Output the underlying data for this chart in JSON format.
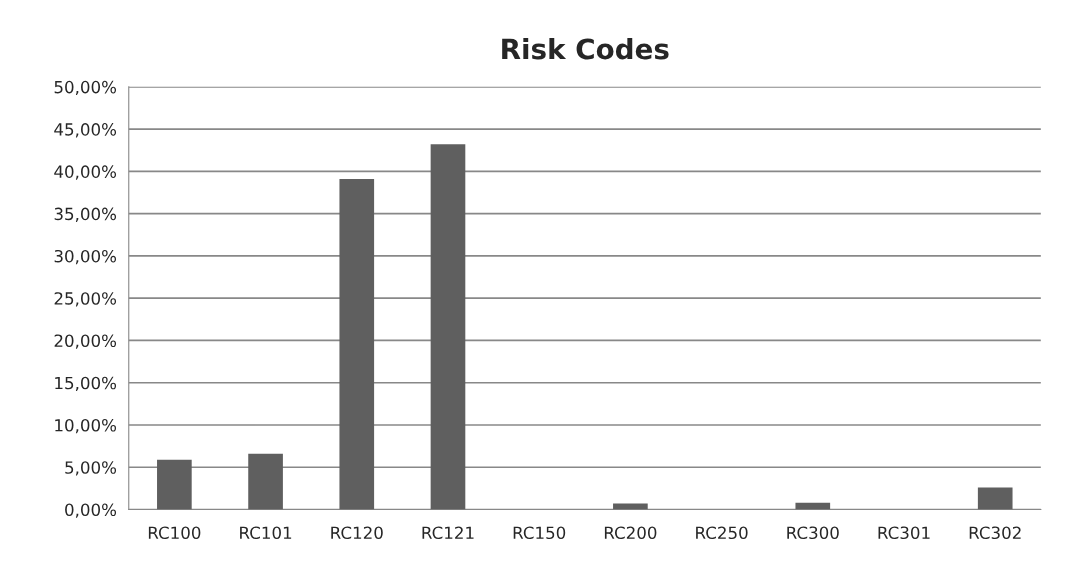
{
  "chart_data": {
    "type": "bar",
    "title": "Risk Codes",
    "categories": [
      "RC100",
      "RC101",
      "RC120",
      "RC121",
      "RC150",
      "RC200",
      "RC250",
      "RC300",
      "RC301",
      "RC302"
    ],
    "values": [
      5.9,
      6.6,
      39.1,
      43.2,
      0,
      0.7,
      0,
      0.8,
      0,
      2.6
    ],
    "color": "#5f5f5f",
    "ylim": [
      0,
      50
    ],
    "yticks": [
      {
        "value": 0,
        "label": "0,00%"
      },
      {
        "value": 5,
        "label": "5,00%"
      },
      {
        "value": 10,
        "label": "10,00%"
      },
      {
        "value": 15,
        "label": "15,00%"
      },
      {
        "value": 20,
        "label": "20,00%"
      },
      {
        "value": 25,
        "label": "25,00%"
      },
      {
        "value": 30,
        "label": "30,00%"
      },
      {
        "value": 35,
        "label": "35,00%"
      },
      {
        "value": 40,
        "label": "40,00%"
      },
      {
        "value": 45,
        "label": "45,00%"
      },
      {
        "value": 50,
        "label": "50,00%"
      }
    ],
    "grid": "y"
  }
}
